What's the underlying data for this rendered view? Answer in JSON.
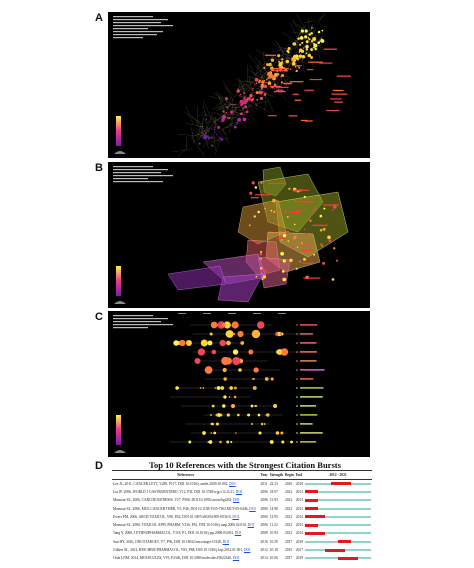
{
  "panels": [
    {
      "letter": "A"
    },
    {
      "letter": "B"
    },
    {
      "letter": "C"
    },
    {
      "letter": "D"
    }
  ],
  "burst_table": {
    "title": "Top 10 References with the Strongest Citation Bursts",
    "headers": [
      "References",
      "Year",
      "Strength",
      "Begin",
      "End",
      "2012 - 2021"
    ],
    "timeline_start": "2012",
    "timeline_end": "2021",
    "rows": [
      {
        "ref": "Lee JL, 2011, CANCER LETT, V285, P117, DOI 10.1016/j.canlet.2009.10.002,",
        "doi": "DOI",
        "year": "2011",
        "strength": "22.33",
        "begin": "2016",
        "end": "2018",
        "burst_start": 2016,
        "burst_end": 2018
      },
      {
        "ref": "Liu JP, 2006, WORLD J GASTROENTERO, V12, P3I, DOI 10.3748/wjg.v12.i3.31,",
        "doi": "DOI",
        "year": "2006",
        "strength": "18.97",
        "begin": "2012",
        "end": "2013",
        "burst_start": 2012,
        "burst_end": 2013
      },
      {
        "ref": "Mansour SL, 2006, CARCINOGENESIS, V27, P508, DOI 10.1093/carcin/bgi263,",
        "doi": "DOI",
        "year": "2006",
        "strength": "15.93",
        "begin": "2012",
        "end": "2013",
        "burst_start": 2012,
        "burst_end": 2013
      },
      {
        "ref": "Mansour SL, 2006, MOL CANCER THER, V5, P46, DOI 10.1158/1535-7163.MCT-05-0446,",
        "doi": "DOI",
        "year": "2006",
        "strength": "14.98",
        "begin": "2012",
        "end": "2013",
        "burst_start": 2012,
        "burst_end": 2013
      },
      {
        "ref": "Ewers PM, 2006, ARCH TOXICOL, V80, P62, DOI 10.1007/s00204-005-0034-0,",
        "doi": "DOI",
        "year": "2006",
        "strength": "12.95",
        "begin": "2012",
        "end": "2014",
        "burst_start": 2012,
        "burst_end": 2014
      },
      {
        "ref": "Mansour SL, 2006, TOXICOL APPL PHARM, V216, P61, DOI 10.1016/j.taap.2006.02.010,",
        "doi": "DOI",
        "year": "2006",
        "strength": "11.22",
        "begin": "2012",
        "end": "2013",
        "burst_start": 2012,
        "burst_end": 2013
      },
      {
        "ref": "Tang Y, 2008, J ETHNOPHARMACOL, V118, P1, DOI 10.1016/j.jep.2008.03.003,",
        "doi": "DOI",
        "year": "2008",
        "strength": "10.94",
        "begin": "2012",
        "end": "2014",
        "burst_start": 2012,
        "burst_end": 2014
      },
      {
        "ref": "Sun HY, 2016, ONCOTARGET, V7, P56, DOI 10.18632/oncotarget.10128,",
        "doi": "DOI",
        "year": "2016",
        "strength": "10.59",
        "begin": "2017",
        "end": "2018",
        "burst_start": 2017,
        "burst_end": 2018
      },
      {
        "ref": "Gilbert SL, 2012, BIOCHEM PHARMACOL, V83, P88, DOI 10.1016/j.bcp.2012.01.001,",
        "doi": "DOI",
        "year": "2012",
        "strength": "10.18",
        "begin": "2015",
        "end": "2017",
        "burst_start": 2015,
        "burst_end": 2017
      },
      {
        "ref": "Orda LNM, 2014, MOLECULES, V19, P2346, DOI 10.3390/molecules19022346,",
        "doi": "DOI",
        "year": "2014",
        "strength": "10.06",
        "begin": "2017",
        "end": "2019",
        "burst_start": 2017,
        "burst_end": 2019
      }
    ]
  }
}
